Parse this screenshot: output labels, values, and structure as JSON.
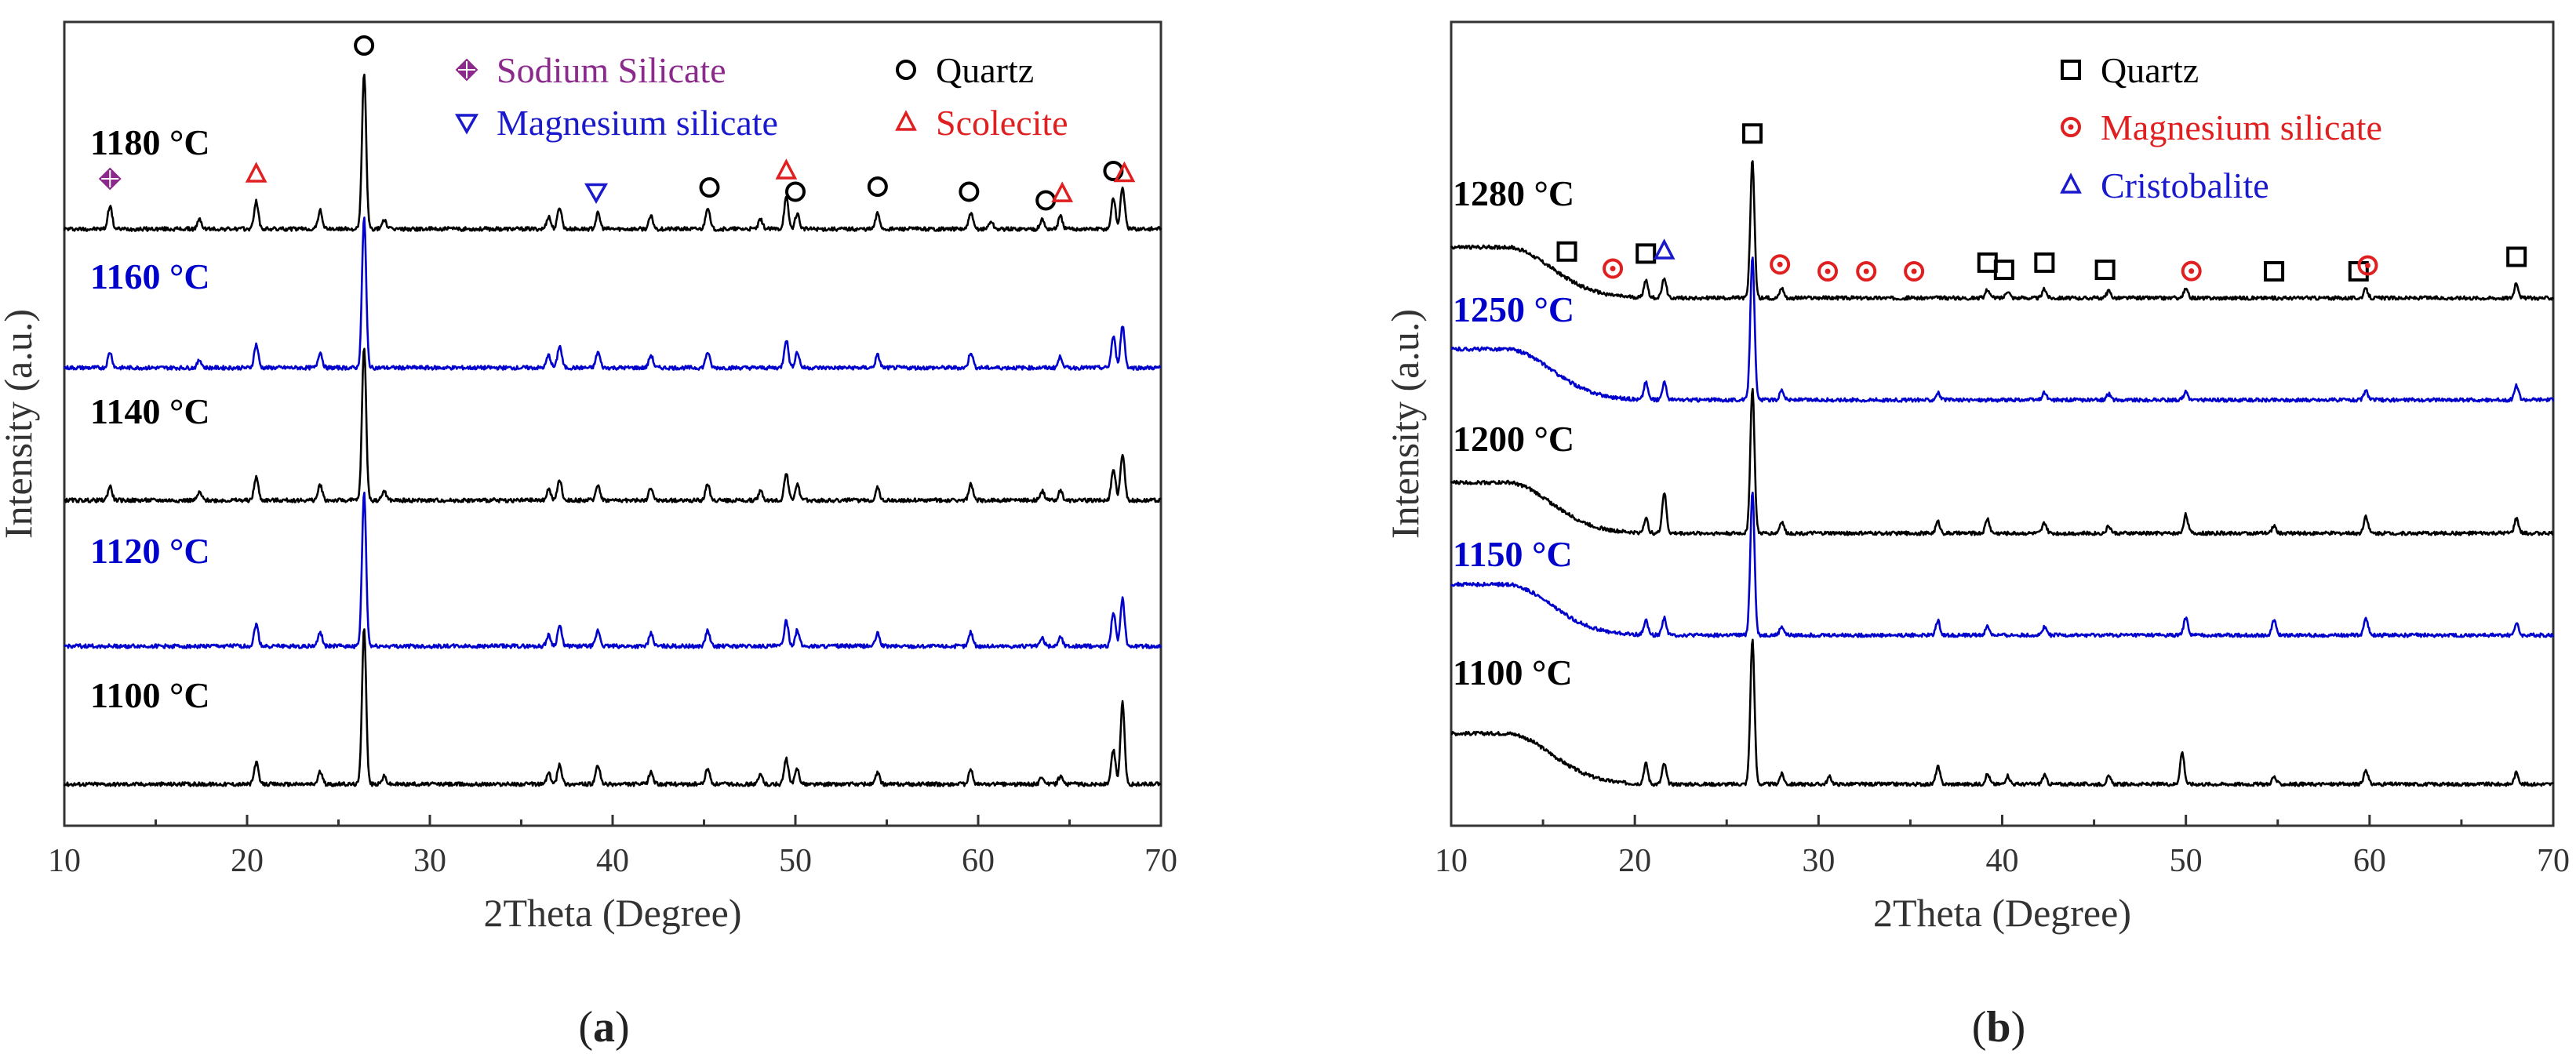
{
  "chart_data": [
    {
      "type": "line",
      "panel_label": "(a)",
      "label_letter": "a",
      "xlabel": "2Theta (Degree)",
      "ylabel": "Intensity (a.u.)",
      "xlim": [
        10,
        70
      ],
      "xticks": [
        10,
        20,
        30,
        40,
        50,
        60,
        70
      ],
      "legend": [
        {
          "name": "Sodium Silicate",
          "marker": "diamond",
          "color": "#8B2A8B"
        },
        {
          "name": "Quartz",
          "marker": "circle",
          "color": "#000000"
        },
        {
          "name": "Magnesium silicate",
          "marker": "triangle-down",
          "color": "#1a1acc"
        },
        {
          "name": "Scolecite",
          "marker": "triangle-up",
          "color": "#e02020"
        }
      ],
      "series": [
        {
          "name": "1180 °C",
          "color": "#000000",
          "peaks": [
            [
              12.5,
              0.15
            ],
            [
              17.4,
              0.06
            ],
            [
              20.5,
              0.18
            ],
            [
              24.0,
              0.12
            ],
            [
              26.4,
              1.0
            ],
            [
              27.5,
              0.06
            ],
            [
              36.5,
              0.08
            ],
            [
              37.1,
              0.14
            ],
            [
              39.2,
              0.1
            ],
            [
              42.1,
              0.08
            ],
            [
              45.2,
              0.14
            ],
            [
              48.1,
              0.06
            ],
            [
              49.5,
              0.2
            ],
            [
              50.1,
              0.1
            ],
            [
              54.5,
              0.1
            ],
            [
              59.6,
              0.1
            ],
            [
              60.7,
              0.05
            ],
            [
              63.5,
              0.06
            ],
            [
              64.5,
              0.08
            ],
            [
              67.4,
              0.2
            ],
            [
              67.9,
              0.27
            ]
          ]
        },
        {
          "name": "1160 °C",
          "color": "#0000cc",
          "peaks": [
            [
              12.5,
              0.1
            ],
            [
              17.4,
              0.05
            ],
            [
              20.5,
              0.15
            ],
            [
              24.0,
              0.1
            ],
            [
              26.4,
              0.96
            ],
            [
              36.5,
              0.08
            ],
            [
              37.1,
              0.14
            ],
            [
              39.2,
              0.1
            ],
            [
              42.1,
              0.08
            ],
            [
              45.2,
              0.1
            ],
            [
              49.5,
              0.18
            ],
            [
              50.1,
              0.1
            ],
            [
              54.5,
              0.08
            ],
            [
              59.6,
              0.1
            ],
            [
              64.5,
              0.07
            ],
            [
              67.4,
              0.2
            ],
            [
              67.9,
              0.27
            ]
          ]
        },
        {
          "name": "1140 °C",
          "color": "#000000",
          "peaks": [
            [
              12.5,
              0.09
            ],
            [
              17.4,
              0.05
            ],
            [
              20.5,
              0.15
            ],
            [
              24.0,
              0.1
            ],
            [
              26.4,
              0.98
            ],
            [
              27.5,
              0.06
            ],
            [
              36.5,
              0.07
            ],
            [
              37.1,
              0.13
            ],
            [
              39.2,
              0.1
            ],
            [
              42.1,
              0.08
            ],
            [
              45.2,
              0.1
            ],
            [
              48.1,
              0.06
            ],
            [
              49.5,
              0.17
            ],
            [
              50.1,
              0.1
            ],
            [
              54.5,
              0.08
            ],
            [
              59.6,
              0.1
            ],
            [
              63.5,
              0.06
            ],
            [
              64.5,
              0.06
            ],
            [
              67.4,
              0.2
            ],
            [
              67.9,
              0.3
            ]
          ]
        },
        {
          "name": "1120 °C",
          "color": "#0000cc",
          "peaks": [
            [
              20.5,
              0.14
            ],
            [
              24.0,
              0.09
            ],
            [
              26.4,
              0.98
            ],
            [
              36.5,
              0.07
            ],
            [
              37.1,
              0.13
            ],
            [
              39.2,
              0.1
            ],
            [
              42.1,
              0.08
            ],
            [
              45.2,
              0.1
            ],
            [
              49.5,
              0.16
            ],
            [
              50.1,
              0.1
            ],
            [
              54.5,
              0.08
            ],
            [
              59.6,
              0.09
            ],
            [
              63.5,
              0.05
            ],
            [
              64.5,
              0.06
            ],
            [
              67.4,
              0.22
            ],
            [
              67.9,
              0.3
            ]
          ]
        },
        {
          "name": "1100 °C",
          "color": "#000000",
          "peaks": [
            [
              20.5,
              0.14
            ],
            [
              24.0,
              0.08
            ],
            [
              26.4,
              1.0
            ],
            [
              27.5,
              0.05
            ],
            [
              36.5,
              0.07
            ],
            [
              37.1,
              0.13
            ],
            [
              39.2,
              0.12
            ],
            [
              42.1,
              0.08
            ],
            [
              45.2,
              0.1
            ],
            [
              48.1,
              0.06
            ],
            [
              49.5,
              0.16
            ],
            [
              50.1,
              0.1
            ],
            [
              54.5,
              0.07
            ],
            [
              59.6,
              0.09
            ],
            [
              63.5,
              0.05
            ],
            [
              64.5,
              0.05
            ],
            [
              67.4,
              0.22
            ],
            [
              67.9,
              0.52
            ]
          ]
        }
      ],
      "phase_markers": [
        {
          "x": 12.5,
          "series": 0,
          "marker": "diamond",
          "color": "#8B2A8B"
        },
        {
          "x": 20.5,
          "series": 0,
          "marker": "triangle-up",
          "color": "#e02020"
        },
        {
          "x": 26.4,
          "series": 0,
          "marker": "circle",
          "color": "#000000"
        },
        {
          "x": 39.1,
          "series": 0,
          "marker": "triangle-down",
          "color": "#1a1acc"
        },
        {
          "x": 45.3,
          "series": 0,
          "marker": "circle",
          "color": "#000000"
        },
        {
          "x": 49.5,
          "series": 0,
          "marker": "triangle-up",
          "color": "#e02020"
        },
        {
          "x": 50.0,
          "series": 0,
          "marker": "circle",
          "color": "#000000"
        },
        {
          "x": 54.5,
          "series": 0,
          "marker": "circle",
          "color": "#000000"
        },
        {
          "x": 59.5,
          "series": 0,
          "marker": "circle",
          "color": "#000000"
        },
        {
          "x": 63.7,
          "series": 0,
          "marker": "circle",
          "color": "#000000"
        },
        {
          "x": 64.6,
          "series": 0,
          "marker": "triangle-up",
          "color": "#e02020"
        },
        {
          "x": 67.4,
          "series": 0,
          "marker": "circle",
          "color": "#000000"
        },
        {
          "x": 68.0,
          "series": 0,
          "marker": "triangle-up",
          "color": "#e02020"
        }
      ]
    },
    {
      "type": "line",
      "panel_label": "(b)",
      "label_letter": "b",
      "xlabel": "2Theta (Degree)",
      "ylabel": "Intensity (a.u.)",
      "xlim": [
        10,
        70
      ],
      "xticks": [
        10,
        20,
        30,
        40,
        50,
        60,
        70
      ],
      "legend": [
        {
          "name": "Quartz",
          "marker": "square",
          "color": "#000000"
        },
        {
          "name": "Magnesium silicate",
          "marker": "circle-dot",
          "color": "#e02020"
        },
        {
          "name": "Cristobalite",
          "marker": "triangle-up",
          "color": "#1a1acc"
        }
      ],
      "series": [
        {
          "name": "1280 °C",
          "color": "#000000",
          "hump": 0.35,
          "peaks": [
            [
              20.6,
              0.12
            ],
            [
              21.6,
              0.14
            ],
            [
              26.4,
              0.95
            ],
            [
              28.0,
              0.07
            ],
            [
              39.2,
              0.06
            ],
            [
              40.3,
              0.05
            ],
            [
              42.3,
              0.06
            ],
            [
              45.8,
              0.05
            ],
            [
              50.0,
              0.06
            ],
            [
              59.8,
              0.06
            ],
            [
              68.0,
              0.1
            ]
          ]
        },
        {
          "name": "1250 °C",
          "color": "#0000cc",
          "hump": 0.35,
          "peaks": [
            [
              20.6,
              0.12
            ],
            [
              21.6,
              0.12
            ],
            [
              26.4,
              1.0
            ],
            [
              28.0,
              0.07
            ],
            [
              36.5,
              0.05
            ],
            [
              42.3,
              0.05
            ],
            [
              45.8,
              0.04
            ],
            [
              50.0,
              0.06
            ],
            [
              59.8,
              0.06
            ],
            [
              68.0,
              0.1
            ]
          ]
        },
        {
          "name": "1200 °C",
          "color": "#000000",
          "hump": 0.35,
          "peaks": [
            [
              20.6,
              0.1
            ],
            [
              21.6,
              0.28
            ],
            [
              26.4,
              1.0
            ],
            [
              28.0,
              0.08
            ],
            [
              36.5,
              0.08
            ],
            [
              39.2,
              0.1
            ],
            [
              42.3,
              0.07
            ],
            [
              45.8,
              0.05
            ],
            [
              50.0,
              0.13
            ],
            [
              54.8,
              0.05
            ],
            [
              59.8,
              0.12
            ],
            [
              68.0,
              0.1
            ]
          ]
        },
        {
          "name": "1150 °C",
          "color": "#0000cc",
          "hump": 0.35,
          "peaks": [
            [
              20.6,
              0.1
            ],
            [
              21.6,
              0.12
            ],
            [
              26.4,
              1.0
            ],
            [
              28.0,
              0.06
            ],
            [
              36.5,
              0.1
            ],
            [
              39.2,
              0.06
            ],
            [
              42.3,
              0.06
            ],
            [
              50.0,
              0.12
            ],
            [
              54.8,
              0.1
            ],
            [
              59.8,
              0.12
            ],
            [
              68.0,
              0.08
            ]
          ]
        },
        {
          "name": "1100 °C",
          "color": "#000000",
          "hump": 0.35,
          "peaks": [
            [
              20.6,
              0.14
            ],
            [
              21.6,
              0.14
            ],
            [
              26.4,
              1.0
            ],
            [
              28.0,
              0.07
            ],
            [
              30.6,
              0.05
            ],
            [
              36.5,
              0.12
            ],
            [
              39.2,
              0.07
            ],
            [
              40.3,
              0.06
            ],
            [
              42.3,
              0.06
            ],
            [
              45.8,
              0.05
            ],
            [
              49.8,
              0.22
            ],
            [
              54.8,
              0.05
            ],
            [
              59.8,
              0.1
            ],
            [
              68.0,
              0.08
            ]
          ]
        }
      ],
      "phase_markers": [
        {
          "x": 16.3,
          "series": 0,
          "marker": "square",
          "color": "#000000"
        },
        {
          "x": 18.8,
          "series": 0,
          "marker": "circle-dot",
          "color": "#e02020"
        },
        {
          "x": 20.6,
          "series": 0,
          "marker": "square",
          "color": "#000000"
        },
        {
          "x": 21.6,
          "series": 0,
          "marker": "triangle-up",
          "color": "#1a1acc"
        },
        {
          "x": 26.4,
          "series": 0,
          "marker": "square",
          "color": "#000000"
        },
        {
          "x": 27.9,
          "series": 0,
          "marker": "circle-dot",
          "color": "#e02020"
        },
        {
          "x": 30.5,
          "series": 0,
          "marker": "circle-dot",
          "color": "#e02020"
        },
        {
          "x": 32.6,
          "series": 0,
          "marker": "circle-dot",
          "color": "#e02020"
        },
        {
          "x": 35.2,
          "series": 0,
          "marker": "circle-dot",
          "color": "#e02020"
        },
        {
          "x": 39.2,
          "series": 0,
          "marker": "square",
          "color": "#000000"
        },
        {
          "x": 40.1,
          "series": 0,
          "marker": "square",
          "color": "#000000"
        },
        {
          "x": 42.3,
          "series": 0,
          "marker": "square",
          "color": "#000000"
        },
        {
          "x": 45.6,
          "series": 0,
          "marker": "square",
          "color": "#000000"
        },
        {
          "x": 50.3,
          "series": 0,
          "marker": "circle-dot",
          "color": "#e02020"
        },
        {
          "x": 54.8,
          "series": 0,
          "marker": "square",
          "color": "#000000"
        },
        {
          "x": 59.4,
          "series": 0,
          "marker": "square",
          "color": "#000000"
        },
        {
          "x": 59.9,
          "series": 0,
          "marker": "circle-dot",
          "color": "#e02020"
        },
        {
          "x": 68.0,
          "series": 0,
          "marker": "square",
          "color": "#000000"
        }
      ]
    }
  ]
}
